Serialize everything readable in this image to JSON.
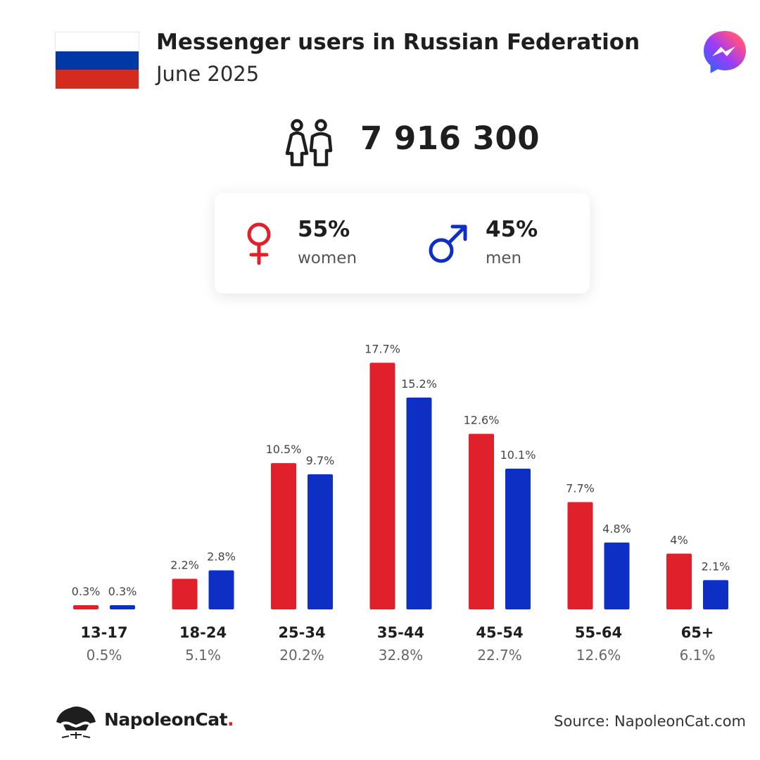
{
  "header": {
    "title": "Messenger users in Russian Federation",
    "subtitle": "June 2025",
    "flag_colors": [
      "#ffffff",
      "#0039a6",
      "#d52b1e"
    ],
    "app_icon": "messenger-icon"
  },
  "summary": {
    "total_users": "7 916 300",
    "people_icon": "people-icon"
  },
  "gender": {
    "women": {
      "percent": "55%",
      "label": "women",
      "color": "#e0202a",
      "icon": "female-icon"
    },
    "men": {
      "percent": "45%",
      "label": "men",
      "color": "#0e2fc4",
      "icon": "male-icon"
    }
  },
  "chart_data": {
    "type": "bar",
    "categories": [
      "13-17",
      "18-24",
      "25-34",
      "35-44",
      "45-54",
      "55-64",
      "65+"
    ],
    "category_totals": [
      "0.5%",
      "5.1%",
      "20.2%",
      "32.8%",
      "22.7%",
      "12.6%",
      "6.1%"
    ],
    "series": [
      {
        "values": [
          0.3,
          2.2,
          10.5,
          17.7,
          12.6,
          7.7,
          4
        ],
        "labels": [
          "0.3%",
          "2.2%",
          "10.5%",
          "17.7%",
          "12.6%",
          "7.7%",
          "4%"
        ],
        "color": "#e0202a"
      },
      {
        "values": [
          0.3,
          2.8,
          9.7,
          15.2,
          10.1,
          4.8,
          2.1
        ],
        "labels": [
          "0.3%",
          "2.8%",
          "9.7%",
          "15.2%",
          "10.1%",
          "4.8%",
          "2.1%"
        ],
        "color": "#0e2fc4"
      }
    ],
    "title": "",
    "xlabel": "",
    "ylabel": "",
    "grid": false
  },
  "footer": {
    "brand": "NapoleonCat",
    "brand_dot": ".",
    "source": "Source: NapoleonCat.com"
  }
}
